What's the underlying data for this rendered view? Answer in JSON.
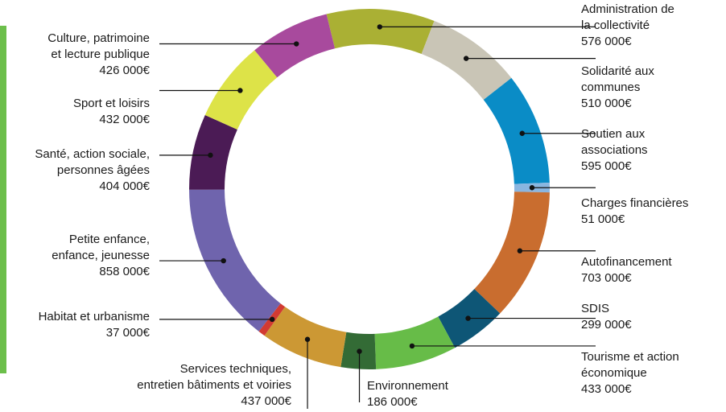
{
  "chart_data": {
    "type": "pie",
    "variant": "donut",
    "title": "",
    "currency_suffix": "€",
    "slices": [
      {
        "label": "Administration de la collectivité",
        "label_lines": [
          "Administration de",
          "la collectivité"
        ],
        "value_text": "576 000€",
        "value": 576000,
        "color": "#aab034"
      },
      {
        "label": "Solidarité aux communes",
        "label_lines": [
          "Solidarité aux",
          "communes"
        ],
        "value_text": "510 000€",
        "value": 510000,
        "color": "#c9c5b6"
      },
      {
        "label": "Soutien aux associations",
        "label_lines": [
          "Soutien aux",
          "associations"
        ],
        "value_text": "595 000€",
        "value": 595000,
        "color": "#0a8cc6"
      },
      {
        "label": "Charges financières",
        "label_lines": [
          "Charges financières"
        ],
        "value_text": "51 000€",
        "value": 51000,
        "color": "#8ab6e0"
      },
      {
        "label": "Autofinancement",
        "label_lines": [
          "Autofinancement"
        ],
        "value_text": "703 000€",
        "value": 703000,
        "color": "#c96d2f"
      },
      {
        "label": "SDIS",
        "label_lines": [
          "SDIS"
        ],
        "value_text": "299 000€",
        "value": 299000,
        "color": "#0e5676"
      },
      {
        "label": "Tourisme et action économique",
        "label_lines": [
          "Tourisme et action",
          "économique"
        ],
        "value_text": "433 000€",
        "value": 433000,
        "color": "#67bc48"
      },
      {
        "label": "Environnement",
        "label_lines": [
          "Environnement"
        ],
        "value_text": "186 000€",
        "value": 186000,
        "color": "#336b35"
      },
      {
        "label": "Services techniques, entretien bâtiments et voiries",
        "label_lines": [
          "Services techniques,",
          "entretien bâtiments et voiries"
        ],
        "value_text": "437 000€",
        "value": 437000,
        "color": "#cc9834"
      },
      {
        "label": "Habitat et urbanisme",
        "label_lines": [
          "Habitat et urbanisme"
        ],
        "value_text": "37 000€",
        "value": 37000,
        "color": "#d23a32"
      },
      {
        "label": "Petite enfance, enfance, jeunesse",
        "label_lines": [
          "Petite enfance,",
          "enfance, jeunesse"
        ],
        "value_text": "858 000€",
        "value": 858000,
        "color": "#6f64ad"
      },
      {
        "label": "Santé, action sociale, personnes âgées",
        "label_lines": [
          "Santé, action sociale,",
          "personnes âgées"
        ],
        "value_text": "404 000€",
        "value": 404000,
        "color": "#4b1b55"
      },
      {
        "label": "Sport et loisirs",
        "label_lines": [
          "Sport et loisirs"
        ],
        "value_text": "432 000€",
        "value": 432000,
        "color": "#dde348"
      },
      {
        "label": "Culture, patrimoine et lecture publique",
        "label_lines": [
          "Culture, patrimoine",
          "et lecture publique"
        ],
        "value_text": "426 000€",
        "value": 426000,
        "color": "#a84a9d"
      }
    ]
  }
}
